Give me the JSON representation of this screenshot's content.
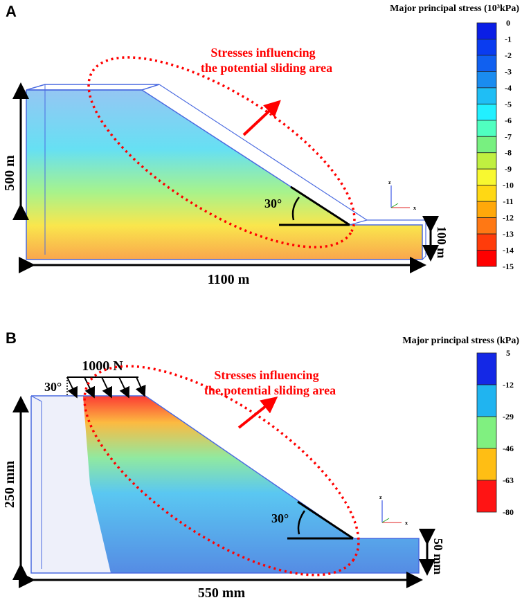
{
  "panel_a": {
    "letter": "A",
    "colorbar_title": "Major principal stress (10³kPa)",
    "colorbar_labels": [
      "0",
      "-1",
      "-2",
      "-3",
      "-4",
      "-5",
      "-6",
      "-7",
      "-8",
      "-9",
      "-10",
      "-11",
      "-12",
      "-13",
      "-14",
      "-15"
    ],
    "colorbar_colors": [
      "#0a1ee6",
      "#0a3cf0",
      "#1060f0",
      "#1a8cf0",
      "#1fbef5",
      "#22f0ff",
      "#50ffc0",
      "#78f080",
      "#c0f040",
      "#f8f830",
      "#ffd814",
      "#ffa80a",
      "#ff7814",
      "#ff3c0a",
      "#ff0000"
    ],
    "annotation_line1": "Stresses influencing",
    "annotation_line2": "the potential sliding area",
    "angle_label": "30°",
    "height_label": "500 m",
    "width_label": "1100 m",
    "toe_height_label": "100 m",
    "axis_z": "z",
    "axis_y": "y",
    "axis_x": "x"
  },
  "panel_b": {
    "letter": "B",
    "colorbar_title": "Major principal stress (kPa)",
    "colorbar_labels": [
      "5",
      "-12",
      "-29",
      "-46",
      "-63",
      "-80"
    ],
    "colorbar_colors": [
      "#1428e6",
      "#20b4f0",
      "#80f080",
      "#ffbe14",
      "#ff1414"
    ],
    "annotation_line1": "Stresses influencing",
    "annotation_line2": "the potential sliding area",
    "load_label": "1000 N",
    "load_angle_label": "30°",
    "angle_label": "30°",
    "height_label": "250 mm",
    "width_label": "550 mm",
    "toe_height_label": "50 mm",
    "axis_z": "z",
    "axis_y": "y",
    "axis_x": "x"
  }
}
